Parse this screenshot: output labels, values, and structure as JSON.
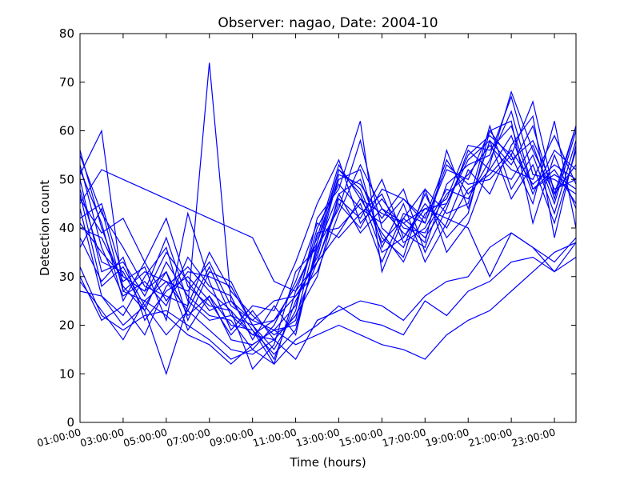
{
  "chart_data": {
    "type": "line",
    "title": "Observer: nagao, Date: 2004-10",
    "xlabel": "Time (hours)",
    "ylabel": "Detection count",
    "xlim": [
      "01:00:00",
      "24:00:00"
    ],
    "ylim": [
      0,
      80
    ],
    "yticks": [
      0,
      10,
      20,
      30,
      40,
      50,
      60,
      70,
      80
    ],
    "xticks": [
      "01:00:00",
      "03:00:00",
      "05:00:00",
      "07:00:00",
      "09:00:00",
      "11:00:00",
      "13:00:00",
      "15:00:00",
      "17:00:00",
      "19:00:00",
      "21:00:00",
      "23:00:00"
    ],
    "grid": false,
    "line_color": "#0000ff",
    "x_hours": [
      1,
      2,
      3,
      4,
      5,
      6,
      7,
      8,
      9,
      10,
      11,
      12,
      13,
      14,
      15,
      16,
      17,
      18,
      19,
      20,
      21,
      22,
      23,
      24
    ],
    "series": [
      {
        "values": [
          56,
          40,
          28,
          23,
          10,
          24,
          74,
          25,
          21,
          19,
          20,
          35,
          52,
          47,
          35,
          38,
          44,
          45,
          55,
          59,
          55,
          45,
          62,
          40
        ]
      },
      {
        "values": [
          51,
          60,
          27,
          25,
          29,
          23,
          32,
          22,
          20,
          15,
          23,
          42,
          48,
          62,
          31,
          42,
          48,
          35,
          41,
          53,
          68,
          56,
          47,
          61
        ]
      },
      {
        "values": [
          46,
          39,
          42,
          33,
          42,
          28,
          24,
          23,
          18,
          21,
          26,
          33,
          45,
          40,
          48,
          46,
          41,
          52,
          50,
          60,
          54,
          58,
          48,
          50
        ]
      },
      {
        "values": [
          42,
          45,
          30,
          27,
          31,
          19,
          26,
          20,
          19,
          12,
          27,
          38,
          53,
          46,
          39,
          33,
          43,
          46,
          57,
          56,
          61,
          48,
          52,
          45
        ]
      },
      {
        "values": [
          38,
          29,
          34,
          21,
          27,
          30,
          25,
          18,
          23,
          17,
          22,
          30,
          47,
          39,
          44,
          41,
          37,
          56,
          44,
          58,
          46,
          53,
          41,
          56
        ]
      },
      {
        "values": [
          53,
          36,
          26,
          29,
          24,
          34,
          28,
          26,
          17,
          24,
          18,
          37,
          50,
          52,
          36,
          45,
          33,
          41,
          52,
          47,
          57,
          63,
          38,
          57
        ]
      },
      {
        "values": [
          48,
          33,
          31,
          23,
          33,
          26,
          22,
          21,
          15,
          20,
          29,
          41,
          38,
          43,
          47,
          37,
          40,
          48,
          46,
          54,
          64,
          48,
          51,
          48
        ]
      },
      {
        "values": [
          44,
          26,
          22,
          30,
          36,
          21,
          31,
          29,
          20,
          13,
          25,
          34,
          51,
          49,
          42,
          48,
          35,
          44,
          56,
          52,
          50,
          57,
          45,
          60
        ]
      },
      {
        "values": [
          30,
          21,
          24,
          18,
          28,
          32,
          27,
          23,
          11,
          16,
          31,
          36,
          44,
          58,
          40,
          36,
          47,
          38,
          43,
          60,
          62,
          41,
          55,
          44
        ]
      },
      {
        "values": [
          55,
          43,
          36,
          28,
          26,
          24,
          35,
          27,
          22,
          18,
          21,
          39,
          40,
          45,
          33,
          43,
          41,
          53,
          49,
          50,
          55,
          66,
          47,
          53
        ]
      },
      {
        "values": [
          40,
          38,
          29,
          32,
          21,
          43,
          29,
          19,
          24,
          23,
          33,
          45,
          54,
          41,
          46,
          40,
          39,
          47,
          51,
          57,
          52,
          50,
          59,
          49
        ]
      },
      {
        "values": [
          50,
          31,
          33,
          26,
          35,
          29,
          23,
          25,
          19,
          14,
          19,
          36,
          47,
          50,
          38,
          34,
          48,
          43,
          45,
          61,
          48,
          55,
          43,
          58
        ]
      },
      {
        "values": [
          36,
          44,
          27,
          31,
          29,
          27,
          33,
          24,
          21,
          25,
          26,
          31,
          43,
          53,
          44,
          39,
          36,
          49,
          53,
          55,
          67,
          51,
          50,
          47
        ]
      },
      {
        "values": [
          47,
          28,
          32,
          24,
          31,
          22,
          26,
          17,
          16,
          19,
          24,
          40,
          49,
          44,
          41,
          46,
          42,
          54,
          47,
          52,
          59,
          47,
          56,
          52
        ]
      },
      {
        "values": [
          52,
          41,
          25,
          33,
          25,
          31,
          30,
          28,
          20,
          21,
          28,
          37,
          52,
          48,
          37,
          42,
          38,
          45,
          54,
          58,
          53,
          61,
          46,
          61
        ]
      },
      {
        "values": [
          41,
          35,
          30,
          27,
          38,
          25,
          21,
          22,
          18,
          17,
          22,
          33,
          46,
          42,
          50,
          38,
          45,
          40,
          48,
          51,
          56,
          49,
          53,
          50
        ]
      },
      {
        "values": [
          29,
          23,
          17,
          25,
          22,
          18,
          16,
          12,
          16,
          19,
          16,
          18,
          20,
          18,
          16,
          15,
          13,
          18,
          21,
          23,
          27,
          31,
          35,
          37
        ]
      },
      {
        "values": [
          27,
          26,
          20,
          24,
          18,
          23,
          19,
          15,
          14,
          17,
          13,
          21,
          23,
          25,
          24,
          21,
          26,
          29,
          30,
          36,
          39,
          36,
          33,
          38
        ]
      },
      {
        "values": [
          32,
          22,
          19,
          22,
          23,
          20,
          17,
          13,
          15,
          12,
          17,
          20,
          24,
          21,
          20,
          18,
          25,
          22,
          27,
          29,
          33,
          34,
          31,
          34
        ]
      },
      {
        "values": [
          45,
          52,
          50,
          48,
          46,
          44,
          42,
          40,
          38,
          29,
          27,
          33,
          39,
          46,
          43,
          41,
          44,
          42,
          40,
          30,
          39,
          36,
          31,
          37
        ]
      }
    ]
  }
}
